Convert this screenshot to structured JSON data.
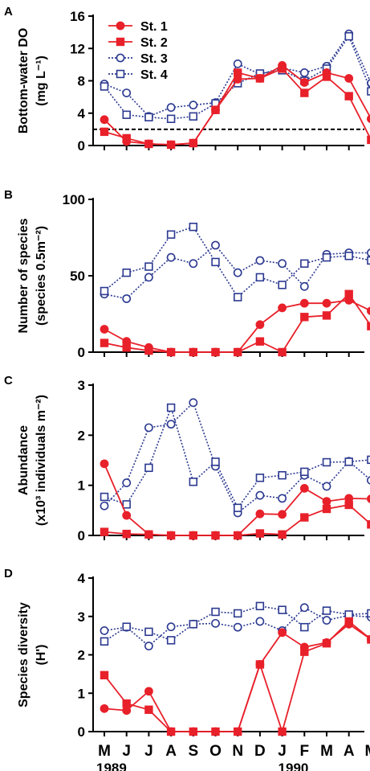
{
  "figure": {
    "months": [
      "M",
      "J",
      "J",
      "A",
      "S",
      "O",
      "N",
      "D",
      "J",
      "F",
      "M",
      "A",
      "M"
    ],
    "years": [
      {
        "label": "1989",
        "month_index": 0
      },
      {
        "label": "1990",
        "month_index": 8.5
      }
    ]
  },
  "colors": {
    "red": "#e8202a",
    "blue": "#2b3990"
  },
  "chart_data": [
    {
      "panel": "A",
      "type": "line",
      "ylabel_lines": [
        "Bottom-water DO",
        "(mg L⁻¹)"
      ],
      "ylim": [
        0,
        16
      ],
      "yticks": [
        0,
        4,
        8,
        12,
        16
      ],
      "reference_line": 2,
      "legend": {
        "placement": "top-left",
        "entries": [
          "St. 1",
          "St. 2",
          "St. 3",
          "St. 4"
        ]
      },
      "series": [
        {
          "name": "St. 1",
          "color": "red",
          "marker": "filled-circle",
          "line": "solid",
          "values": [
            3.2,
            0.5,
            0.2,
            0.1,
            0.3,
            4.4,
            8.2,
            8.3,
            9.9,
            7.8,
            9.0,
            8.3,
            3.3
          ]
        },
        {
          "name": "St. 2",
          "color": "red",
          "marker": "filled-square",
          "line": "solid",
          "values": [
            1.7,
            0.9,
            0.2,
            0.1,
            0.3,
            4.4,
            9.0,
            8.3,
            9.5,
            6.5,
            8.5,
            6.1,
            0.7
          ]
        },
        {
          "name": "St. 3",
          "color": "blue",
          "marker": "open-circle",
          "line": "dotted",
          "values": [
            7.6,
            6.5,
            3.6,
            4.7,
            5.0,
            5.3,
            10.1,
            8.8,
            9.6,
            9.0,
            9.8,
            13.8,
            7.7
          ]
        },
        {
          "name": "St. 4",
          "color": "blue",
          "marker": "open-square",
          "line": "dotted",
          "values": [
            7.3,
            3.8,
            3.5,
            3.3,
            3.6,
            5.2,
            7.7,
            8.9,
            9.3,
            8.0,
            9.5,
            13.5,
            6.7
          ]
        }
      ]
    },
    {
      "panel": "B",
      "type": "line",
      "ylabel_lines": [
        "Number of species",
        "(species 0.5m⁻²)"
      ],
      "ylim": [
        0,
        100
      ],
      "yticks": [
        0,
        50,
        100
      ],
      "series": [
        {
          "name": "St. 1",
          "color": "red",
          "marker": "filled-circle",
          "line": "solid",
          "values": [
            15,
            7,
            3,
            0,
            0,
            0,
            0,
            18,
            29,
            32,
            32,
            34,
            27
          ]
        },
        {
          "name": "St. 2",
          "color": "red",
          "marker": "filled-square",
          "line": "solid",
          "values": [
            6,
            3,
            1,
            0,
            0,
            0,
            0,
            7,
            0,
            23,
            24,
            38,
            17
          ]
        },
        {
          "name": "St. 3",
          "color": "blue",
          "marker": "open-circle",
          "line": "dotted",
          "values": [
            38,
            35,
            49,
            62,
            58,
            70,
            52,
            60,
            58,
            43,
            64,
            65,
            65
          ]
        },
        {
          "name": "St. 4",
          "color": "blue",
          "marker": "open-square",
          "line": "dotted",
          "values": [
            40,
            52,
            56,
            77,
            82,
            59,
            36,
            49,
            44,
            58,
            62,
            63,
            60
          ]
        }
      ]
    },
    {
      "panel": "C",
      "type": "line",
      "ylabel_lines": [
        "Abundance",
        "(x10³ individuals m⁻²)"
      ],
      "ylim": [
        0,
        3
      ],
      "yticks": [
        0,
        1,
        2,
        3
      ],
      "series": [
        {
          "name": "St. 1",
          "color": "red",
          "marker": "filled-circle",
          "line": "solid",
          "values": [
            1.43,
            0.4,
            0.02,
            0.0,
            0.0,
            0.0,
            0.0,
            0.43,
            0.42,
            0.94,
            0.68,
            0.74,
            0.73
          ]
        },
        {
          "name": "St. 2",
          "color": "red",
          "marker": "filled-square",
          "line": "solid",
          "values": [
            0.07,
            0.03,
            0.02,
            0.0,
            0.0,
            0.0,
            0.0,
            0.04,
            0.02,
            0.36,
            0.53,
            0.61,
            0.22
          ]
        },
        {
          "name": "St. 3",
          "color": "blue",
          "marker": "open-circle",
          "line": "dotted",
          "values": [
            0.59,
            1.05,
            2.15,
            2.22,
            2.65,
            1.38,
            0.45,
            0.8,
            0.74,
            1.2,
            0.98,
            1.48,
            1.1
          ]
        },
        {
          "name": "St. 4",
          "color": "blue",
          "marker": "open-square",
          "line": "dotted",
          "values": [
            0.77,
            0.62,
            1.35,
            2.55,
            1.07,
            1.47,
            0.55,
            1.15,
            1.2,
            1.27,
            1.46,
            1.47,
            1.51
          ]
        }
      ]
    },
    {
      "panel": "D",
      "type": "line",
      "ylabel_lines": [
        "Species diversity",
        "(H')"
      ],
      "ylim": [
        0,
        4
      ],
      "yticks": [
        0,
        1,
        2,
        3,
        4
      ],
      "series": [
        {
          "name": "St. 1",
          "color": "red",
          "marker": "filled-circle",
          "line": "solid",
          "values": [
            0.6,
            0.55,
            1.05,
            0,
            0,
            0,
            0,
            1.75,
            2.58,
            2.2,
            2.32,
            2.8,
            2.4
          ]
        },
        {
          "name": "St. 2",
          "color": "red",
          "marker": "filled-square",
          "line": "solid",
          "values": [
            1.47,
            0.73,
            0.57,
            0,
            0,
            0,
            0,
            1.75,
            0,
            2.08,
            2.3,
            2.87,
            2.4
          ]
        },
        {
          "name": "St. 3",
          "color": "blue",
          "marker": "open-circle",
          "line": "dotted",
          "values": [
            2.63,
            2.72,
            2.23,
            2.73,
            2.8,
            2.82,
            2.72,
            2.87,
            2.63,
            3.23,
            2.9,
            3.03,
            2.98
          ]
        },
        {
          "name": "St. 4",
          "color": "blue",
          "marker": "open-square",
          "line": "dotted",
          "values": [
            2.35,
            2.73,
            2.6,
            2.38,
            2.8,
            3.12,
            3.08,
            3.27,
            3.17,
            2.72,
            3.15,
            3.05,
            3.08
          ]
        }
      ]
    }
  ]
}
